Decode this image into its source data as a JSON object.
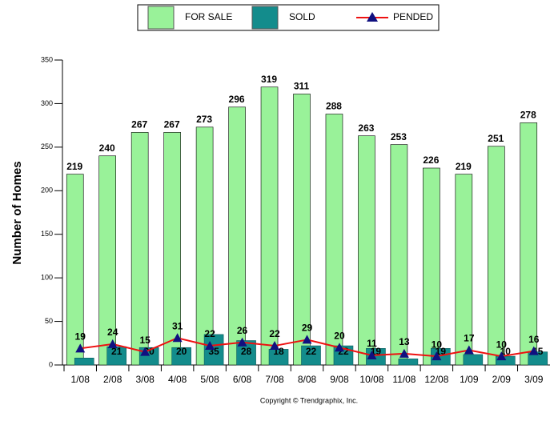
{
  "chart_data": {
    "type": "bar",
    "y_label": "Number of Homes",
    "copyright": "Copyright © Trendgraphix, Inc.",
    "categories": [
      "1/08",
      "2/08",
      "3/08",
      "4/08",
      "5/08",
      "6/08",
      "7/08",
      "8/08",
      "9/08",
      "10/08",
      "11/08",
      "12/08",
      "1/09",
      "2/09",
      "3/09"
    ],
    "series": [
      {
        "name": "FOR SALE",
        "color": "#99f299",
        "values": [
          219,
          240,
          267,
          267,
          273,
          296,
          319,
          311,
          288,
          263,
          253,
          226,
          219,
          251,
          278
        ]
      },
      {
        "name": "SOLD",
        "color": "#138c8c",
        "values": [
          8,
          21,
          20,
          20,
          35,
          28,
          18,
          22,
          22,
          19,
          7,
          19,
          12,
          10,
          15
        ],
        "value_labels": [
          null,
          "21",
          "20",
          "20",
          "35",
          "28",
          "18",
          "22",
          "22",
          "19",
          null,
          "19",
          null,
          "10",
          "15"
        ]
      },
      {
        "name": "PENDED",
        "color": "#ee1111",
        "marker_color": "#101080",
        "kind": "line",
        "values": [
          19,
          24,
          15,
          31,
          22,
          26,
          22,
          29,
          20,
          11,
          13,
          10,
          17,
          10,
          16
        ]
      }
    ],
    "ylim": [
      0,
      350
    ],
    "yticks": [
      0,
      50,
      100,
      150,
      200,
      250,
      300,
      350
    ],
    "grid": false
  }
}
